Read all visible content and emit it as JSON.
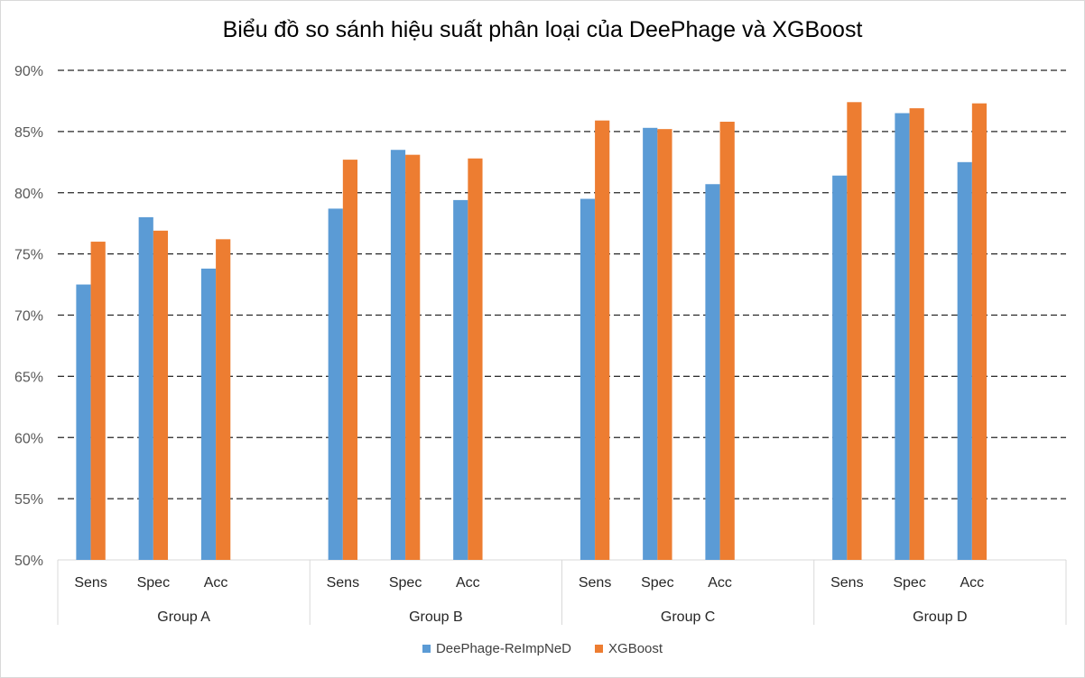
{
  "chart_data": {
    "type": "bar",
    "title": "Biểu đồ so sánh hiệu suất phân loại của DeePhage và XGBoost",
    "xlabel": "",
    "ylabel": "",
    "ylim": [
      0.5,
      0.9
    ],
    "y_ticks": [
      "50%",
      "55%",
      "60%",
      "65%",
      "70%",
      "75%",
      "80%",
      "85%",
      "90%"
    ],
    "grid": true,
    "legend_position": "bottom",
    "groups": [
      "Group A",
      "Group B",
      "Group C",
      "Group D"
    ],
    "metrics": [
      "Sens",
      "Spec",
      "Acc"
    ],
    "series": [
      {
        "name": "DeePhage-ReImpNeD",
        "color": "#5b9bd5",
        "values": [
          [
            0.725,
            0.78,
            0.738
          ],
          [
            0.787,
            0.835,
            0.794
          ],
          [
            0.795,
            0.853,
            0.807
          ],
          [
            0.814,
            0.865,
            0.825
          ]
        ]
      },
      {
        "name": "XGBoost",
        "color": "#ed7d31",
        "values": [
          [
            0.76,
            0.769,
            0.762
          ],
          [
            0.827,
            0.831,
            0.828
          ],
          [
            0.859,
            0.852,
            0.858
          ],
          [
            0.874,
            0.869,
            0.873
          ]
        ]
      }
    ]
  }
}
